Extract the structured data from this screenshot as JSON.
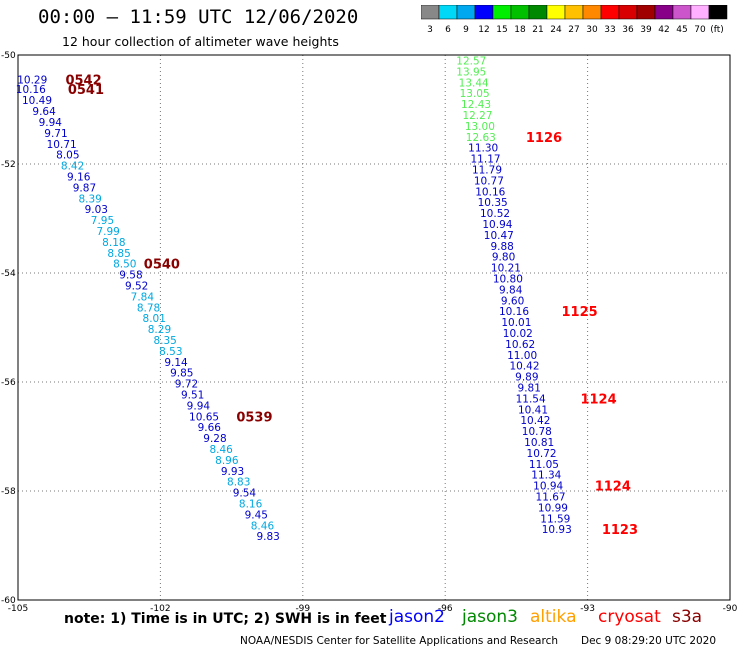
{
  "header": {
    "title": "00:00 – 11:59 UTC 12/06/2020",
    "subtitle": "12 hour collection of altimeter wave heights"
  },
  "colorbar": {
    "labels": [
      "3",
      "6",
      "9",
      "12",
      "15",
      "18",
      "21",
      "24",
      "27",
      "30",
      "33",
      "36",
      "39",
      "42",
      "45",
      "70",
      "(ft)"
    ],
    "colors": [
      "#888888",
      "#00d8f8",
      "#00a8f0",
      "#0000ff",
      "#00ee00",
      "#00c000",
      "#008800",
      "#ffff00",
      "#ffc000",
      "#ff8800",
      "#ff0000",
      "#d80000",
      "#a00000",
      "#880088",
      "#cc55cc",
      "#ffb0ff",
      "#000000"
    ]
  },
  "footer": {
    "note": "note: 1) Time is in UTC; 2) SWH is in feet",
    "satellites": [
      {
        "name": "jason2",
        "color": "#0000ff"
      },
      {
        "name": "jason3",
        "color": "#008800"
      },
      {
        "name": "altika",
        "color": "#ffa000"
      },
      {
        "name": "cryosat",
        "color": "#ff0000"
      },
      {
        "name": "s3a",
        "color": "#880000"
      }
    ],
    "credit": "NOAA/NESDIS Center for Satellite Applications and Research",
    "timestamp": "Dec  9 08:29:20 UTC 2020"
  },
  "chart_data": {
    "type": "scatter",
    "title": "00:00 – 11:59 UTC 12/06/2020",
    "subtitle": "12 hour collection of altimeter wave heights",
    "xlim": [
      -105,
      -90
    ],
    "ylim": [
      -60,
      -50
    ],
    "x_ticks": [
      "-105",
      "-102",
      "-99",
      "-96",
      "-93",
      "-90"
    ],
    "y_ticks": [
      "-50",
      "-52",
      "-54",
      "-56",
      "-58",
      "-60"
    ],
    "grid": true,
    "tracks": [
      {
        "color": "#000099",
        "points": [
          {
            "lon": -104.7,
            "lat": -50.45,
            "label": "10.29",
            "color": "#0000cc"
          },
          {
            "lon": -104.73,
            "lat": -50.62,
            "label": "10.16",
            "color": "#0000cc"
          },
          {
            "lon": -104.6,
            "lat": -50.83,
            "label": "10.49",
            "color": "#0000cc"
          },
          {
            "lon": -104.45,
            "lat": -51.03,
            "label": "9.64",
            "color": "#0000cc"
          },
          {
            "lon": -104.32,
            "lat": -51.23,
            "label": "9.94",
            "color": "#0000cc"
          },
          {
            "lon": -104.2,
            "lat": -51.43,
            "label": "9.71",
            "color": "#0000cc"
          },
          {
            "lon": -104.08,
            "lat": -51.63,
            "label": "10.71",
            "color": "#0000cc"
          },
          {
            "lon": -103.95,
            "lat": -51.83,
            "label": "8.05",
            "color": "#0000cc"
          },
          {
            "lon": -103.85,
            "lat": -52.03,
            "label": "8.42",
            "color": "#00a8e0"
          },
          {
            "lon": -103.72,
            "lat": -52.23,
            "label": "9.16",
            "color": "#0000cc"
          },
          {
            "lon": -103.6,
            "lat": -52.43,
            "label": "9.87",
            "color": "#0000cc"
          },
          {
            "lon": -103.48,
            "lat": -52.63,
            "label": "8.39",
            "color": "#00a8e0"
          },
          {
            "lon": -103.35,
            "lat": -52.83,
            "label": "9.03",
            "color": "#0000cc"
          },
          {
            "lon": -103.22,
            "lat": -53.03,
            "label": "7.95",
            "color": "#00a8e0"
          },
          {
            "lon": -103.1,
            "lat": -53.23,
            "label": "7.99",
            "color": "#00a8e0"
          },
          {
            "lon": -102.98,
            "lat": -53.43,
            "label": "8.18",
            "color": "#00a8e0"
          },
          {
            "lon": -102.87,
            "lat": -53.63,
            "label": "8.85",
            "color": "#00a8e0"
          },
          {
            "lon": -102.75,
            "lat": -53.83,
            "label": "8.50",
            "color": "#00a8e0"
          },
          {
            "lon": -102.62,
            "lat": -54.03,
            "label": "9.58",
            "color": "#0000cc"
          },
          {
            "lon": -102.5,
            "lat": -54.23,
            "label": "9.52",
            "color": "#0000cc"
          },
          {
            "lon": -102.38,
            "lat": -54.43,
            "label": "7.84",
            "color": "#00a8e0"
          },
          {
            "lon": -102.25,
            "lat": -54.63,
            "label": "8.78",
            "color": "#00a8e0"
          },
          {
            "lon": -102.13,
            "lat": -54.83,
            "label": "8.01",
            "color": "#00a8e0"
          },
          {
            "lon": -102.02,
            "lat": -55.03,
            "label": "8.29",
            "color": "#00a8e0"
          },
          {
            "lon": -101.9,
            "lat": -55.23,
            "label": "8.35",
            "color": "#00a8e0"
          },
          {
            "lon": -101.78,
            "lat": -55.43,
            "label": "8.53",
            "color": "#00a8e0"
          },
          {
            "lon": -101.67,
            "lat": -55.63,
            "label": "9.14",
            "color": "#0000cc"
          },
          {
            "lon": -101.55,
            "lat": -55.83,
            "label": "9.85",
            "color": "#0000cc"
          },
          {
            "lon": -101.45,
            "lat": -56.03,
            "label": "9.72",
            "color": "#0000cc"
          },
          {
            "lon": -101.32,
            "lat": -56.23,
            "label": "9.51",
            "color": "#0000cc"
          },
          {
            "lon": -101.2,
            "lat": -56.43,
            "label": "9.94",
            "color": "#0000cc"
          },
          {
            "lon": -101.08,
            "lat": -56.63,
            "label": "10.65",
            "color": "#0000cc"
          },
          {
            "lon": -100.97,
            "lat": -56.83,
            "label": "9.66",
            "color": "#0000cc"
          },
          {
            "lon": -100.85,
            "lat": -57.03,
            "label": "9.28",
            "color": "#0000cc"
          },
          {
            "lon": -100.72,
            "lat": -57.23,
            "label": "8.46",
            "color": "#00a8e0"
          },
          {
            "lon": -100.6,
            "lat": -57.43,
            "label": "8.96",
            "color": "#00a8e0"
          },
          {
            "lon": -100.48,
            "lat": -57.63,
            "label": "9.93",
            "color": "#0000cc"
          },
          {
            "lon": -100.35,
            "lat": -57.83,
            "label": "8.83",
            "color": "#00a8e0"
          },
          {
            "lon": -100.23,
            "lat": -58.03,
            "label": "9.54",
            "color": "#0000cc"
          },
          {
            "lon": -100.1,
            "lat": -58.23,
            "label": "8.16",
            "color": "#00a8e0"
          },
          {
            "lon": -99.98,
            "lat": -58.43,
            "label": "9.45",
            "color": "#0000cc"
          },
          {
            "lon": -99.85,
            "lat": -58.63,
            "label": "8.46",
            "color": "#00a8e0"
          },
          {
            "lon": -99.73,
            "lat": -58.83,
            "label": "9.83",
            "color": "#0000cc"
          }
        ]
      },
      {
        "color": "#000099",
        "points": [
          {
            "lon": -95.45,
            "lat": -50.1,
            "label": "12.57",
            "color": "#55ee55"
          },
          {
            "lon": -95.45,
            "lat": -50.3,
            "label": "13.95",
            "color": "#55ee55"
          },
          {
            "lon": -95.4,
            "lat": -50.5,
            "label": "13.44",
            "color": "#55ee55"
          },
          {
            "lon": -95.38,
            "lat": -50.7,
            "label": "13.05",
            "color": "#55ee55"
          },
          {
            "lon": -95.35,
            "lat": -50.9,
            "label": "12.43",
            "color": "#55ee55"
          },
          {
            "lon": -95.32,
            "lat": -51.1,
            "label": "12.27",
            "color": "#55ee55"
          },
          {
            "lon": -95.27,
            "lat": -51.3,
            "label": "13.00",
            "color": "#55ee55"
          },
          {
            "lon": -95.25,
            "lat": -51.5,
            "label": "12.63",
            "color": "#55ee55"
          },
          {
            "lon": -95.2,
            "lat": -51.7,
            "label": "11.30",
            "color": "#0000cc"
          },
          {
            "lon": -95.15,
            "lat": -51.9,
            "label": "11.17",
            "color": "#0000cc"
          },
          {
            "lon": -95.12,
            "lat": -52.1,
            "label": "11.79",
            "color": "#0000cc"
          },
          {
            "lon": -95.08,
            "lat": -52.3,
            "label": "10.77",
            "color": "#0000cc"
          },
          {
            "lon": -95.05,
            "lat": -52.5,
            "label": "10.16",
            "color": "#0000cc"
          },
          {
            "lon": -95.0,
            "lat": -52.7,
            "label": "10.35",
            "color": "#0000cc"
          },
          {
            "lon": -94.95,
            "lat": -52.9,
            "label": "10.52",
            "color": "#0000cc"
          },
          {
            "lon": -94.9,
            "lat": -53.1,
            "label": "10.94",
            "color": "#0000cc"
          },
          {
            "lon": -94.87,
            "lat": -53.3,
            "label": "10.47",
            "color": "#0000cc"
          },
          {
            "lon": -94.8,
            "lat": -53.5,
            "label": "9.88",
            "color": "#0000cc"
          },
          {
            "lon": -94.77,
            "lat": -53.7,
            "label": "9.80",
            "color": "#0000cc"
          },
          {
            "lon": -94.72,
            "lat": -53.9,
            "label": "10.21",
            "color": "#0000cc"
          },
          {
            "lon": -94.68,
            "lat": -54.1,
            "label": "10.80",
            "color": "#0000cc"
          },
          {
            "lon": -94.62,
            "lat": -54.3,
            "label": "9.84",
            "color": "#0000cc"
          },
          {
            "lon": -94.58,
            "lat": -54.5,
            "label": "9.60",
            "color": "#0000cc"
          },
          {
            "lon": -94.55,
            "lat": -54.7,
            "label": "10.16",
            "color": "#0000cc"
          },
          {
            "lon": -94.5,
            "lat": -54.9,
            "label": "10.01",
            "color": "#0000cc"
          },
          {
            "lon": -94.47,
            "lat": -55.1,
            "label": "10.02",
            "color": "#0000cc"
          },
          {
            "lon": -94.42,
            "lat": -55.3,
            "label": "10.62",
            "color": "#0000cc"
          },
          {
            "lon": -94.38,
            "lat": -55.5,
            "label": "11.00",
            "color": "#0000cc"
          },
          {
            "lon": -94.33,
            "lat": -55.7,
            "label": "10.42",
            "color": "#0000cc"
          },
          {
            "lon": -94.28,
            "lat": -55.9,
            "label": "9.89",
            "color": "#0000cc"
          },
          {
            "lon": -94.23,
            "lat": -56.1,
            "label": "9.81",
            "color": "#0000cc"
          },
          {
            "lon": -94.2,
            "lat": -56.3,
            "label": "11.54",
            "color": "#0000cc"
          },
          {
            "lon": -94.15,
            "lat": -56.5,
            "label": "10.41",
            "color": "#0000cc"
          },
          {
            "lon": -94.1,
            "lat": -56.7,
            "label": "10.42",
            "color": "#0000cc"
          },
          {
            "lon": -94.07,
            "lat": -56.9,
            "label": "10.78",
            "color": "#0000cc"
          },
          {
            "lon": -94.02,
            "lat": -57.1,
            "label": "10.81",
            "color": "#0000cc"
          },
          {
            "lon": -93.97,
            "lat": -57.3,
            "label": "10.72",
            "color": "#0000cc"
          },
          {
            "lon": -93.92,
            "lat": -57.5,
            "label": "11.05",
            "color": "#0000cc"
          },
          {
            "lon": -93.87,
            "lat": -57.7,
            "label": "11.34",
            "color": "#0000cc"
          },
          {
            "lon": -93.83,
            "lat": -57.9,
            "label": "10.94",
            "color": "#0000cc"
          },
          {
            "lon": -93.78,
            "lat": -58.1,
            "label": "11.67",
            "color": "#0000cc"
          },
          {
            "lon": -93.73,
            "lat": -58.3,
            "label": "10.99",
            "color": "#0000cc"
          },
          {
            "lon": -93.68,
            "lat": -58.5,
            "label": "11.59",
            "color": "#0000cc"
          },
          {
            "lon": -93.65,
            "lat": -58.7,
            "label": "10.93",
            "color": "#0000cc"
          }
        ]
      }
    ],
    "time_labels": [
      {
        "text": "0542",
        "lon": -104.0,
        "lat": -50.45,
        "color": "#880000"
      },
      {
        "text": "0541",
        "lon": -103.95,
        "lat": -50.62,
        "color": "#880000"
      },
      {
        "text": "0540",
        "lon": -102.35,
        "lat": -53.83,
        "color": "#880000"
      },
      {
        "text": "0539",
        "lon": -100.4,
        "lat": -56.63,
        "color": "#880000"
      },
      {
        "text": "1126",
        "lon": -94.3,
        "lat": -51.5,
        "color": "#ff0000"
      },
      {
        "text": "1125",
        "lon": -93.55,
        "lat": -54.7,
        "color": "#ff0000"
      },
      {
        "text": "1124",
        "lon": -93.15,
        "lat": -56.3,
        "color": "#ff0000"
      },
      {
        "text": "1124",
        "lon": -92.85,
        "lat": -57.9,
        "color": "#ff0000"
      },
      {
        "text": "1123",
        "lon": -92.7,
        "lat": -58.7,
        "color": "#ff0000"
      }
    ]
  }
}
